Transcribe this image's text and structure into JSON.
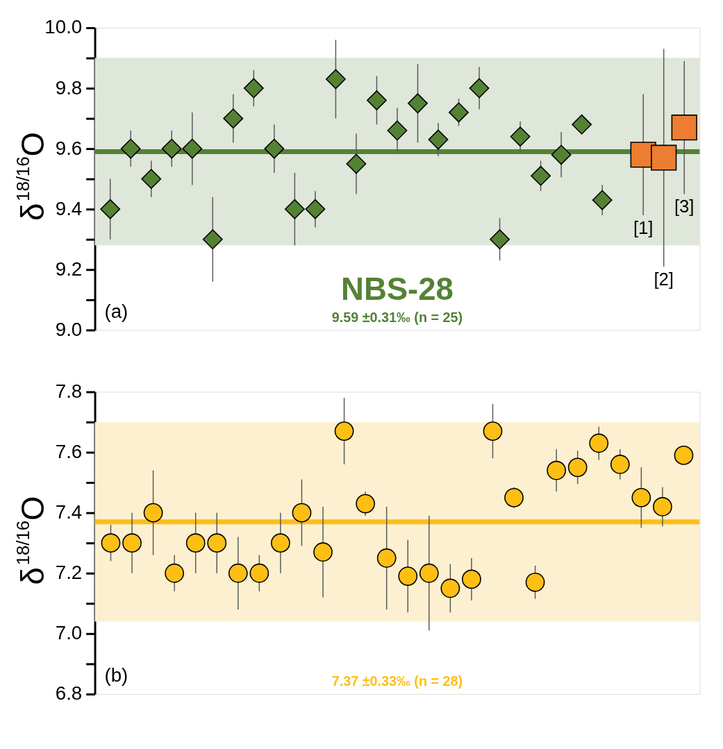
{
  "chart_data": [
    {
      "type": "scatter",
      "title": "NBS-28",
      "subtitle": "9.59 ±0.31‰ (n = 25)",
      "ylabel": "δ$^{18/16}$O",
      "annotations": [
        "(a)"
      ],
      "tick_labels": "y",
      "categories": [
        null,
        null,
        null,
        null,
        null,
        null,
        null,
        null,
        null,
        null,
        null,
        null,
        null,
        null,
        null,
        null,
        null,
        null,
        null,
        null,
        null,
        null,
        null,
        null,
        null,
        null,
        null,
        null,
        null
      ],
      "ylim": [
        9.0,
        10.0
      ],
      "yticks": [
        {
          "value": 9.0,
          "label": "9.0"
        },
        {
          "value": 9.1,
          "label": null
        },
        9.2,
        {
          "value": 9.3,
          "label": null
        },
        9.4,
        {
          "value": 9.5,
          "label": null
        },
        9.6,
        {
          "value": 9.7,
          "label": null
        },
        9.8,
        {
          "value": 9.9,
          "label": null
        },
        {
          "value": 10.0,
          "label": "10.0"
        }
      ],
      "series": [
        {
          "color": "#548235",
          "marker": "diamond",
          "values": [
            9.4,
            9.6,
            9.5,
            9.6,
            9.6,
            9.3,
            9.7,
            9.8,
            9.6,
            9.4,
            9.4,
            9.83,
            9.55,
            9.76,
            9.66,
            9.75,
            9.63,
            9.72,
            9.8,
            9.3,
            9.64,
            9.51,
            9.58,
            9.68,
            9.43,
            null,
            null,
            null,
            null
          ],
          "errors": [
            0.1,
            0.06,
            0.06,
            0.06,
            0.12,
            0.14,
            0.08,
            0.06,
            0.08,
            0.12,
            0.06,
            0.13,
            0.1,
            0.08,
            0.075,
            0.13,
            0.055,
            0.045,
            0.07,
            0.07,
            0.05,
            0.05,
            0.075,
            null,
            0.05,
            null,
            null,
            null,
            null
          ]
        },
        {
          "name": "[1]",
          "color": "#ed7d31",
          "marker": "square",
          "values": [
            null,
            null,
            null,
            null,
            null,
            null,
            null,
            null,
            null,
            null,
            null,
            null,
            null,
            null,
            null,
            null,
            null,
            null,
            null,
            null,
            null,
            null,
            null,
            null,
            null,
            null,
            9.58,
            null,
            null
          ],
          "errors": [
            null,
            null,
            null,
            null,
            null,
            null,
            null,
            null,
            null,
            null,
            null,
            null,
            null,
            null,
            null,
            null,
            null,
            null,
            null,
            null,
            null,
            null,
            null,
            null,
            null,
            null,
            0.2,
            null,
            null
          ]
        },
        {
          "name": "[2]",
          "color": "#ed7d31",
          "marker": "square",
          "values": [
            null,
            null,
            null,
            null,
            null,
            null,
            null,
            null,
            null,
            null,
            null,
            null,
            null,
            null,
            null,
            null,
            null,
            null,
            null,
            null,
            null,
            null,
            null,
            null,
            null,
            null,
            null,
            9.57,
            null
          ],
          "errors": [
            null,
            null,
            null,
            null,
            null,
            null,
            null,
            null,
            null,
            null,
            null,
            null,
            null,
            null,
            null,
            null,
            null,
            null,
            null,
            null,
            null,
            null,
            null,
            null,
            null,
            null,
            null,
            0.36,
            null
          ]
        },
        {
          "name": "[3]",
          "color": "#ed7d31",
          "marker": "square",
          "values": [
            null,
            null,
            null,
            null,
            null,
            null,
            null,
            null,
            null,
            null,
            null,
            null,
            null,
            null,
            null,
            null,
            null,
            null,
            null,
            null,
            null,
            null,
            null,
            null,
            null,
            null,
            null,
            null,
            9.67
          ],
          "errors": [
            null,
            null,
            null,
            null,
            null,
            null,
            null,
            null,
            null,
            null,
            null,
            null,
            null,
            null,
            null,
            null,
            null,
            null,
            null,
            null,
            null,
            null,
            null,
            null,
            null,
            null,
            null,
            null,
            0.22
          ]
        }
      ],
      "ref_lines": [
        {
          "axis": "y",
          "value": 9.59,
          "color": "#548235"
        }
      ],
      "bands": [
        {
          "axis": "y",
          "from": 9.28,
          "to": 9.9,
          "color": "#dfe6da"
        }
      ]
    },
    {
      "type": "scatter",
      "subtitle": "7.37 ±0.33‰ (n = 28)",
      "ylabel": "δ$^{18/16}$O",
      "annotations": [
        "(b)"
      ],
      "tick_labels": "y",
      "categories": [
        null,
        null,
        null,
        null,
        null,
        null,
        null,
        null,
        null,
        null,
        null,
        null,
        null,
        null,
        null,
        null,
        null,
        null,
        null,
        null,
        null,
        null,
        null,
        null,
        null,
        null,
        null,
        null
      ],
      "ylim": [
        6.8,
        7.8
      ],
      "yticks": [
        6.8,
        {
          "value": 6.9,
          "label": null
        },
        {
          "value": 7.0,
          "label": "7.0"
        },
        {
          "value": 7.1,
          "label": null
        },
        7.2,
        {
          "value": 7.3,
          "label": null
        },
        7.4,
        {
          "value": 7.5,
          "label": null
        },
        7.6,
        {
          "value": 7.7,
          "label": null
        },
        7.8
      ],
      "series": [
        {
          "color": "#fdbf14",
          "marker": "circle",
          "values": [
            7.3,
            7.3,
            7.4,
            7.2,
            7.3,
            7.3,
            7.2,
            7.2,
            7.3,
            7.4,
            7.27,
            7.67,
            7.43,
            7.25,
            7.19,
            7.2,
            7.15,
            7.18,
            7.67,
            7.45,
            7.17,
            7.54,
            7.55,
            7.63,
            7.56,
            7.45,
            7.42,
            7.59
          ],
          "errors": [
            0.06,
            0.1,
            0.14,
            0.06,
            0.1,
            0.1,
            0.12,
            0.06,
            0.1,
            0.11,
            0.15,
            0.11,
            0.04,
            0.17,
            0.12,
            0.19,
            0.08,
            0.07,
            0.09,
            0.035,
            0.055,
            0.07,
            0.055,
            0.055,
            0.05,
            0.1,
            0.065,
            0.03
          ]
        }
      ],
      "ref_lines": [
        {
          "axis": "y",
          "value": 7.37,
          "color": "#fdbf14"
        }
      ],
      "bands": [
        {
          "axis": "y",
          "from": 7.04,
          "to": 7.7,
          "color": "#fdf0d0"
        }
      ]
    }
  ]
}
